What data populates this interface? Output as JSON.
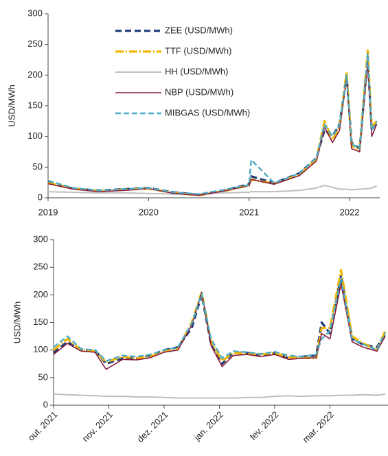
{
  "chart_data": [
    {
      "type": "line",
      "y_label": "USD/MWh",
      "legend": "upper left",
      "x": [
        2019.0,
        2019.25,
        2019.5,
        2019.75,
        2020.0,
        2020.25,
        2020.5,
        2020.75,
        2021.0,
        2021.02,
        2021.25,
        2021.5,
        2021.67,
        2021.75,
        2021.83,
        2021.9,
        2021.97,
        2022.02,
        2022.1,
        2022.18,
        2022.22,
        2022.27
      ],
      "xlim": [
        2019,
        2022.3
      ],
      "xticks": [
        2019,
        2020,
        2021,
        2022
      ],
      "ylim": [
        0,
        300
      ],
      "yticks": [
        0,
        50,
        100,
        150,
        200,
        250,
        300
      ],
      "series": [
        {
          "name": "ZEE (USD/MWh)",
          "color": "#1f3c7a",
          "dash": "9,5",
          "width": 3.2,
          "values": [
            25,
            15,
            12,
            14,
            16,
            9,
            5,
            12,
            22,
            35,
            24,
            40,
            65,
            110,
            100,
            120,
            200,
            90,
            80,
            230,
            110,
            125
          ]
        },
        {
          "name": "TTF (USD/MWh)",
          "color": "#f2b600",
          "dash": "12,3,2,3",
          "width": 3.2,
          "values": [
            24,
            15,
            11,
            13,
            15,
            8,
            4,
            11,
            20,
            30,
            23,
            38,
            63,
            125,
            95,
            115,
            205,
            85,
            78,
            240,
            115,
            125
          ]
        },
        {
          "name": "HH (USD/MWh)",
          "color": "#bfbfbf",
          "dash": "none",
          "width": 2,
          "values": [
            10,
            9,
            8,
            8,
            7,
            6,
            6,
            8,
            9,
            10,
            10,
            12,
            16,
            20,
            17,
            14,
            14,
            13,
            14,
            15,
            16,
            19
          ]
        },
        {
          "name": "NBP (USD/MWh)",
          "color": "#8b1a3a",
          "dash": "none",
          "width": 1.6,
          "values": [
            23,
            14,
            10,
            12,
            15,
            7,
            4,
            11,
            20,
            30,
            22,
            36,
            60,
            115,
            90,
            110,
            195,
            80,
            75,
            220,
            100,
            120
          ]
        },
        {
          "name": "MIBGAS (USD/MWh)",
          "color": "#4bacc6",
          "dash": "8,4",
          "width": 2.4,
          "values": [
            28,
            16,
            12,
            14,
            16,
            9,
            6,
            13,
            21,
            62,
            24,
            40,
            65,
            120,
            100,
            118,
            200,
            88,
            80,
            235,
            110,
            125
          ]
        }
      ]
    },
    {
      "type": "line",
      "y_label": "USD/MWh",
      "x": [
        0,
        0.25,
        0.5,
        0.75,
        0.95,
        1.25,
        1.5,
        1.75,
        2,
        2.25,
        2.5,
        2.68,
        2.85,
        3.05,
        3.25,
        3.5,
        3.75,
        4,
        4.25,
        4.5,
        4.75,
        4.85,
        5,
        5.2,
        5.4,
        5.6,
        5.85,
        6.0
      ],
      "xlim": [
        0,
        6.05
      ],
      "xticks": [
        {
          "value": 0,
          "label": "out. 2021"
        },
        {
          "value": 1,
          "label": "nov. 2021"
        },
        {
          "value": 2,
          "label": "dez. 2021"
        },
        {
          "value": 3,
          "label": "jan. 2022"
        },
        {
          "value": 4,
          "label": "fev. 2022"
        },
        {
          "value": 5,
          "label": "mar. 2022"
        }
      ],
      "ylim": [
        0,
        300
      ],
      "yticks": [
        0,
        50,
        100,
        150,
        200,
        250,
        300
      ],
      "series": [
        {
          "color": "#1f3c7a",
          "dash": "9,5",
          "width": 3.2,
          "values": [
            95,
            115,
            100,
            100,
            75,
            85,
            85,
            90,
            100,
            105,
            140,
            200,
            110,
            75,
            95,
            95,
            90,
            95,
            85,
            88,
            90,
            150,
            130,
            235,
            120,
            110,
            105,
            130
          ]
        },
        {
          "color": "#f2b600",
          "dash": "12,3,2,3",
          "width": 3.2,
          "values": [
            100,
            120,
            100,
            98,
            78,
            88,
            85,
            88,
            98,
            102,
            150,
            205,
            115,
            80,
            95,
            93,
            92,
            95,
            87,
            86,
            85,
            140,
            140,
            245,
            125,
            112,
            100,
            135
          ]
        },
        {
          "color": "#bfbfbf",
          "dash": "none",
          "width": 2,
          "values": [
            20,
            19,
            18,
            17,
            16,
            16,
            15,
            15,
            14,
            13,
            13,
            13,
            13,
            13,
            13,
            14,
            14,
            16,
            17,
            16,
            17,
            17,
            17,
            18,
            18,
            19,
            18,
            20
          ]
        },
        {
          "color": "#8b1a3a",
          "dash": "none",
          "width": 1.6,
          "values": [
            92,
            112,
            98,
            96,
            65,
            83,
            82,
            86,
            96,
            100,
            145,
            205,
            108,
            70,
            90,
            92,
            88,
            92,
            83,
            85,
            86,
            130,
            120,
            220,
            115,
            105,
            98,
            125
          ]
        },
        {
          "color": "#4bacc6",
          "dash": "8,4",
          "width": 2.4,
          "values": [
            105,
            125,
            102,
            100,
            80,
            90,
            88,
            92,
            100,
            105,
            148,
            202,
            120,
            85,
            98,
            96,
            93,
            97,
            90,
            88,
            92,
            120,
            135,
            230,
            120,
            110,
            100,
            132
          ]
        }
      ]
    }
  ]
}
